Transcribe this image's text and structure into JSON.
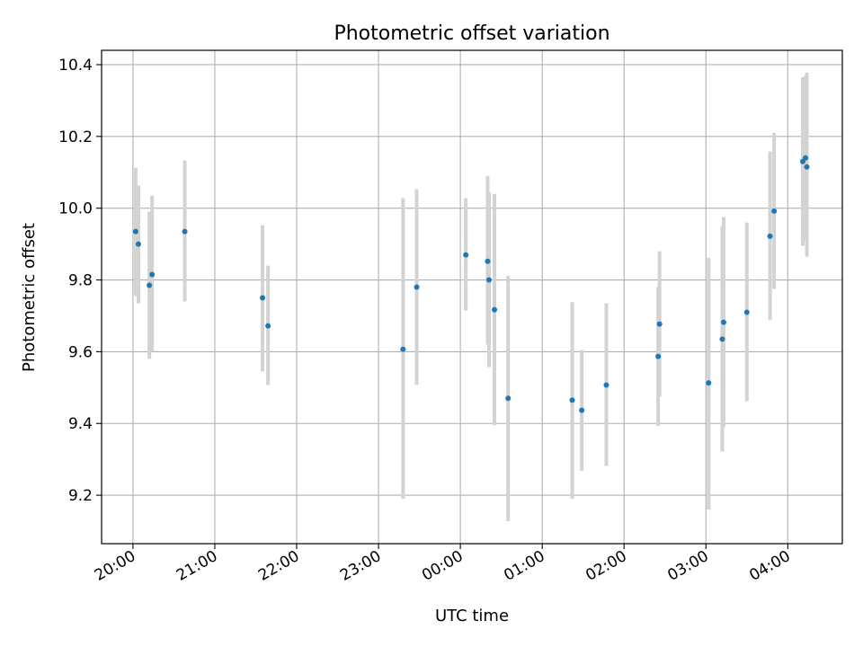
{
  "chart_data": {
    "type": "scatter",
    "title": "Photometric offset variation",
    "xlabel": "UTC time",
    "ylabel": "Photometric offset",
    "x_axis_type": "time",
    "x_reference_date": "",
    "xlim": [
      "19:37",
      "04:40"
    ],
    "ylim": [
      9.065,
      10.44
    ],
    "grid": true,
    "y_ticks": [
      9.2,
      9.4,
      9.6,
      9.8,
      10.0,
      10.2,
      10.4
    ],
    "y_tick_labels": [
      "9.2",
      "9.4",
      "9.6",
      "9.8",
      "10.0",
      "10.2",
      "10.4"
    ],
    "x_ticks": [
      "20:00",
      "21:00",
      "22:00",
      "23:00",
      "00:00",
      "01:00",
      "02:00",
      "03:00",
      "04:00"
    ],
    "x_tick_labels": [
      "20:00",
      "21:00",
      "22:00",
      "23:00",
      "00:00",
      "01:00",
      "02:00",
      "03:00",
      "04:00"
    ],
    "marker_color": "#1f77b4",
    "errorbar_color": "#d3d3d3",
    "grid_color": "#b0b0b0",
    "points": [
      {
        "x": "20:02",
        "y": 9.935,
        "ylow": 9.755,
        "yhigh": 10.113
      },
      {
        "x": "20:04",
        "y": 9.9,
        "ylow": 9.735,
        "yhigh": 10.063
      },
      {
        "x": "20:12",
        "y": 9.785,
        "ylow": 9.58,
        "yhigh": 9.99
      },
      {
        "x": "20:14",
        "y": 9.815,
        "ylow": 9.6,
        "yhigh": 10.035
      },
      {
        "x": "20:38",
        "y": 9.935,
        "ylow": 9.74,
        "yhigh": 10.133
      },
      {
        "x": "21:35",
        "y": 9.75,
        "ylow": 9.545,
        "yhigh": 9.953
      },
      {
        "x": "21:39",
        "y": 9.672,
        "ylow": 9.507,
        "yhigh": 9.84
      },
      {
        "x": "23:18",
        "y": 9.607,
        "ylow": 9.19,
        "yhigh": 10.028
      },
      {
        "x": "23:28",
        "y": 9.78,
        "ylow": 9.507,
        "yhigh": 10.053
      },
      {
        "x": "00:04",
        "y": 9.87,
        "ylow": 9.715,
        "yhigh": 10.028
      },
      {
        "x": "00:20",
        "y": 9.852,
        "ylow": 9.62,
        "yhigh": 10.09
      },
      {
        "x": "00:21",
        "y": 9.8,
        "ylow": 9.557,
        "yhigh": 10.045
      },
      {
        "x": "00:25",
        "y": 9.717,
        "ylow": 9.395,
        "yhigh": 10.04
      },
      {
        "x": "00:35",
        "y": 9.47,
        "ylow": 9.128,
        "yhigh": 9.812
      },
      {
        "x": "01:22",
        "y": 9.465,
        "ylow": 9.19,
        "yhigh": 9.738
      },
      {
        "x": "01:29",
        "y": 9.437,
        "ylow": 9.268,
        "yhigh": 9.605
      },
      {
        "x": "01:47",
        "y": 9.507,
        "ylow": 9.282,
        "yhigh": 9.735
      },
      {
        "x": "02:25",
        "y": 9.587,
        "ylow": 9.393,
        "yhigh": 9.78
      },
      {
        "x": "02:26",
        "y": 9.677,
        "ylow": 9.475,
        "yhigh": 9.88
      },
      {
        "x": "03:02",
        "y": 9.513,
        "ylow": 9.16,
        "yhigh": 9.862
      },
      {
        "x": "03:12",
        "y": 9.635,
        "ylow": 9.322,
        "yhigh": 9.95
      },
      {
        "x": "03:13",
        "y": 9.682,
        "ylow": 9.39,
        "yhigh": 9.975
      },
      {
        "x": "03:30",
        "y": 9.71,
        "ylow": 9.462,
        "yhigh": 9.96
      },
      {
        "x": "03:47",
        "y": 9.922,
        "ylow": 9.688,
        "yhigh": 10.158
      },
      {
        "x": "03:50",
        "y": 9.992,
        "ylow": 9.775,
        "yhigh": 10.21
      },
      {
        "x": "04:11",
        "y": 10.13,
        "ylow": 9.895,
        "yhigh": 10.365
      },
      {
        "x": "04:13",
        "y": 10.14,
        "ylow": 9.91,
        "yhigh": 10.368
      },
      {
        "x": "04:14",
        "y": 10.115,
        "ylow": 9.865,
        "yhigh": 10.378
      }
    ]
  }
}
